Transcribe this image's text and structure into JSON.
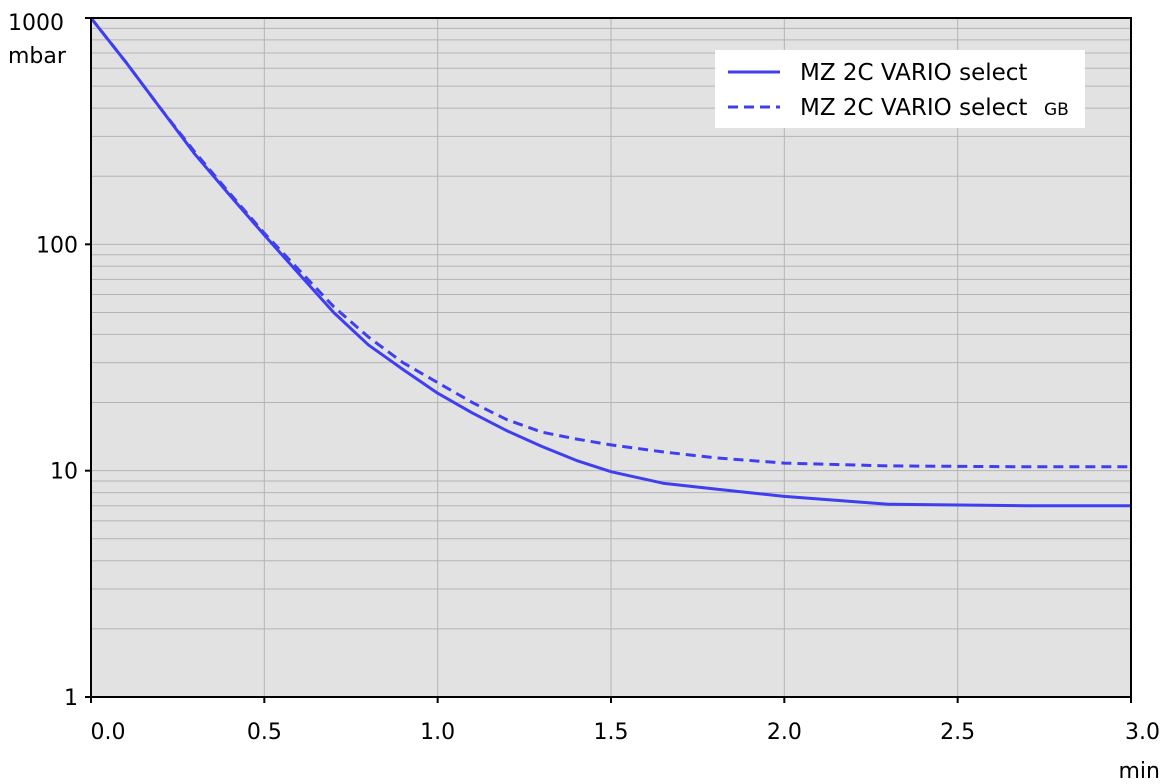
{
  "chart_data": {
    "type": "line",
    "y_scale": "log",
    "x_unit": "min",
    "y_unit": "mbar",
    "xlim": [
      0,
      3.0
    ],
    "ylim": [
      1,
      1000
    ],
    "x_ticks": [
      "0.0",
      "0.5",
      "1.0",
      "1.5",
      "2.0",
      "2.5",
      "3.0"
    ],
    "y_ticks": [
      "1",
      "10",
      "100",
      "1000"
    ],
    "grid": true,
    "legend_position": "top-right",
    "background_color": "#e2e2e2",
    "line_color": "#3f3ff0",
    "series": [
      {
        "name": "MZ 2C VARIO select",
        "style": "solid",
        "x": [
          0.0,
          0.1,
          0.2,
          0.3,
          0.4,
          0.5,
          0.6,
          0.7,
          0.8,
          0.9,
          1.0,
          1.1,
          1.2,
          1.3,
          1.4,
          1.5,
          1.65,
          1.8,
          2.0,
          2.3,
          2.7,
          3.0
        ],
        "y": [
          1000,
          640,
          400,
          250,
          165,
          110,
          74,
          50,
          36,
          28,
          22,
          18,
          15,
          12.8,
          11.1,
          9.9,
          8.8,
          8.3,
          7.7,
          7.1,
          7.0,
          7.0
        ]
      },
      {
        "name": "MZ 2C VARIO select GB",
        "style": "dashed",
        "x": [
          0.0,
          0.1,
          0.2,
          0.3,
          0.4,
          0.5,
          0.6,
          0.7,
          0.8,
          0.9,
          1.0,
          1.1,
          1.2,
          1.3,
          1.4,
          1.5,
          1.65,
          1.8,
          2.0,
          2.3,
          2.7,
          3.0
        ],
        "y": [
          1000,
          640,
          400,
          255,
          168,
          112,
          77,
          53,
          39,
          30,
          24.5,
          20,
          16.8,
          14.8,
          13.8,
          13.0,
          12.1,
          11.4,
          10.8,
          10.5,
          10.4,
          10.4
        ]
      }
    ],
    "legend_entries": [
      {
        "text": "MZ 2C VARIO select",
        "suffix": ""
      },
      {
        "text": "MZ 2C VARIO select",
        "suffix": "GB"
      }
    ]
  }
}
